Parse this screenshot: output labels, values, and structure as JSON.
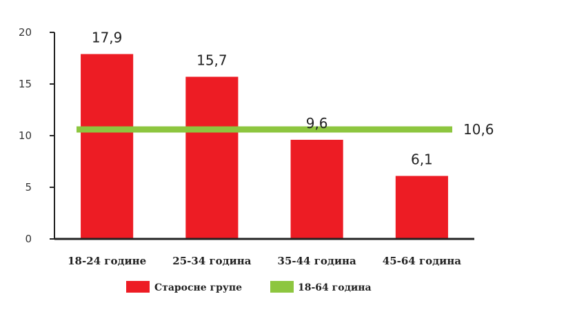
{
  "chart_data": {
    "type": "bar",
    "categories": [
      "18-24 године",
      "25-34 година",
      "35-44 година",
      "45-64 година"
    ],
    "series": [
      {
        "name": "Старосне групе",
        "values": [
          17.9,
          15.7,
          9.6,
          6.1
        ],
        "value_labels": [
          "17,9",
          "15,7",
          "9,6",
          "6,1"
        ],
        "color": "#ed1c24"
      }
    ],
    "reference_line": {
      "name": "18-64 година",
      "value": 10.6,
      "value_label": "10,6",
      "color": "#8dc63f"
    },
    "yticks": [
      "0",
      "5",
      "10",
      "15",
      "20"
    ],
    "ylim": [
      0,
      20
    ],
    "title": "",
    "xlabel": "",
    "ylabel": "",
    "legend_position": "bottom",
    "grid": false
  }
}
